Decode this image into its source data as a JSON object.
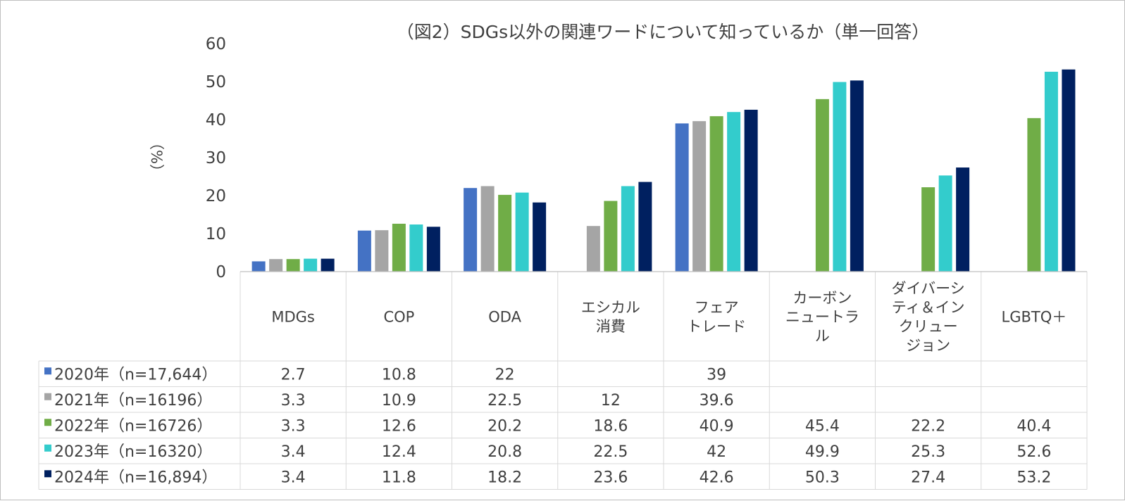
{
  "chart_data": {
    "type": "bar",
    "title": "（図2）SDGs以外の関連ワードについて知っているか（単一回答）",
    "ylabel": "（%）",
    "ylim": [
      0,
      60
    ],
    "yticks": [
      0,
      10,
      20,
      30,
      40,
      50,
      60
    ],
    "grid": false,
    "legend_placement": "data-table-left",
    "categories": [
      [
        "MDGs"
      ],
      [
        "COP"
      ],
      [
        "ODA"
      ],
      [
        "エシカル",
        "消費"
      ],
      [
        "フェア",
        "トレード"
      ],
      [
        "カーボン",
        "ニュートラ",
        "ル"
      ],
      [
        "ダイバーシ",
        "ティ＆イン",
        "クリュー",
        "ジョン"
      ],
      [
        "LGBTQ＋"
      ]
    ],
    "series": [
      {
        "name": "2020年（n=17,644）",
        "color": "#4472c4",
        "values": [
          2.7,
          10.8,
          22,
          null,
          39,
          null,
          null,
          null
        ]
      },
      {
        "name": "2021年（n=16196）",
        "color": "#a5a5a5",
        "values": [
          3.3,
          10.9,
          22.5,
          12,
          39.6,
          null,
          null,
          null
        ]
      },
      {
        "name": "2022年（n=16726）",
        "color": "#70ad47",
        "values": [
          3.3,
          12.6,
          20.2,
          18.6,
          40.9,
          45.4,
          22.2,
          40.4
        ]
      },
      {
        "name": "2023年（n=16320）",
        "color": "#33cccc",
        "values": [
          3.4,
          12.4,
          20.8,
          22.5,
          42,
          49.9,
          25.3,
          52.6
        ]
      },
      {
        "name": "2024年（n=16,894）",
        "color": "#002060",
        "values": [
          3.4,
          11.8,
          18.2,
          23.6,
          42.6,
          50.3,
          27.4,
          53.2
        ]
      }
    ]
  },
  "style": {
    "text_color": "#404040",
    "grid_color": "#d9d9d9",
    "axis_color": "#bfbfbf"
  }
}
